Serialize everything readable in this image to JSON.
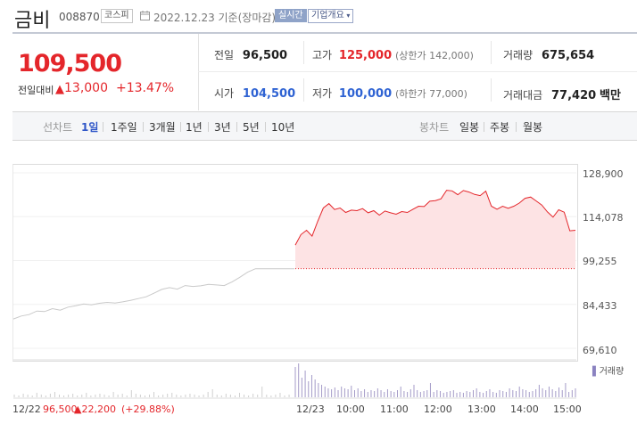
{
  "header": {
    "name": "금비",
    "code": "008870",
    "market": "코스피",
    "date_text": "2022.12.23 기준(장마감)",
    "live_label": "실시간",
    "info_label": "기업개요"
  },
  "price": {
    "current": "109,500",
    "change_label": "전일대비",
    "change_arrow": "▲",
    "change_amount": "13,000",
    "change_pct": "+13.47%"
  },
  "quote": {
    "prev_label": "전일",
    "prev_value": "96,500",
    "high_label": "고가",
    "high_value": "125,000",
    "upper_limit": "(상한가 142,000)",
    "volume_label": "거래량",
    "volume_value": "675,654",
    "open_label": "시가",
    "open_value": "104,500",
    "low_label": "저가",
    "low_value": "100,000",
    "lower_limit": "(하한가 77,000)",
    "amount_label": "거래대금",
    "amount_value": "77,420",
    "amount_unit": "백만"
  },
  "tabs": {
    "line_chart_label": "선차트",
    "line_periods": [
      "1일",
      "1주일",
      "3개월",
      "1년",
      "3년",
      "5년",
      "10년"
    ],
    "active_period": "1일",
    "candle_chart_label": "봉차트",
    "candle_periods": [
      "일봉",
      "주봉",
      "월봉"
    ]
  },
  "chart_data": {
    "type": "line",
    "y_ticks": [
      "128,900",
      "114,078",
      "99,255",
      "84,433",
      "69,610"
    ],
    "ylim": [
      69610,
      128900
    ],
    "prev_close": 96500,
    "x_labels": [
      "12/22",
      "12/23",
      "10:00",
      "11:00",
      "12:00",
      "13:00",
      "14:00",
      "15:00"
    ],
    "series": [
      {
        "values_prev_day": [
          79500,
          80500,
          81000,
          82200,
          82000,
          83000,
          82500,
          83500,
          84000,
          84600,
          84300,
          84800,
          85100,
          84900,
          85300,
          85800,
          86400,
          87000,
          88200,
          89500,
          90100,
          89600,
          90800,
          90500,
          90700,
          91200,
          91000,
          90800,
          92000,
          93600,
          95300,
          96500,
          96500,
          96500,
          96500,
          96500,
          96500
        ]
      },
      {
        "values_today": [
          104500,
          108000,
          109500,
          107500,
          112500,
          117000,
          118500,
          116500,
          117000,
          115500,
          116300,
          116100,
          116800,
          115400,
          116100,
          114600,
          116000,
          115400,
          114900,
          115800,
          115500,
          116600,
          117600,
          117500,
          119300,
          119500,
          120100,
          123000,
          122800,
          121500,
          122900,
          122400,
          121600,
          121200,
          122700,
          117600,
          116600,
          117600,
          116900,
          117600,
          118700,
          120300,
          120700,
          119400,
          118000,
          115700,
          113900,
          116400,
          115600,
          109300,
          109500
        ]
      }
    ],
    "volume_legend": "거래량",
    "footer": {
      "date": "12/22",
      "price": "96,500",
      "change_arrow": "▲",
      "change": "22,200",
      "pct": "(+29.88%)"
    }
  },
  "colors": {
    "up": "#e4262b",
    "down": "#2f63d3",
    "area": "#fde3e4",
    "prev_line": "#c9c9c9",
    "volume": "#a49bc8"
  }
}
